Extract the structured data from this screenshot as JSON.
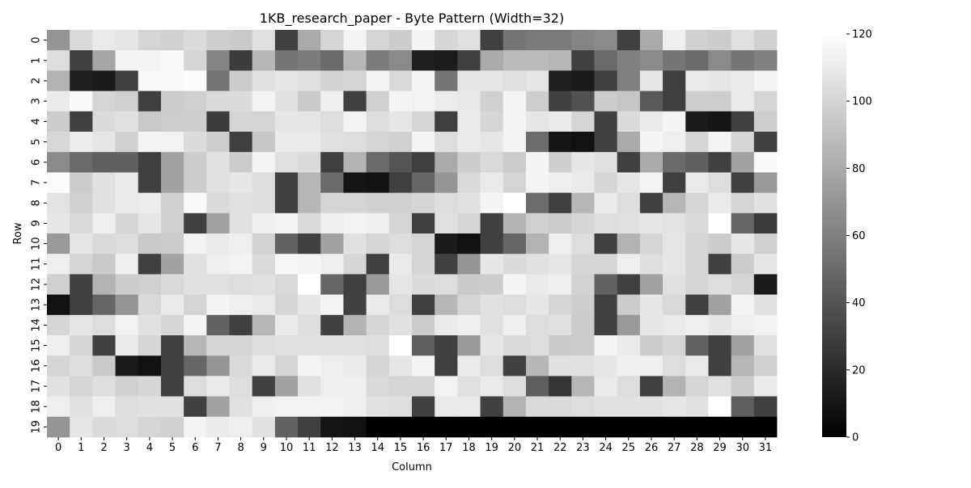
{
  "chart_data": {
    "type": "heatmap",
    "title": "1KB_research_paper - Byte Pattern (Width=32)",
    "xlabel": "Column",
    "ylabel": "Row",
    "x_ticks": [
      "0",
      "1",
      "2",
      "3",
      "4",
      "5",
      "6",
      "7",
      "8",
      "9",
      "10",
      "11",
      "12",
      "13",
      "14",
      "15",
      "16",
      "17",
      "18",
      "19",
      "20",
      "21",
      "22",
      "23",
      "24",
      "25",
      "26",
      "27",
      "28",
      "29",
      "30",
      "31"
    ],
    "y_ticks": [
      "0",
      "1",
      "2",
      "3",
      "4",
      "5",
      "6",
      "7",
      "8",
      "9",
      "10",
      "11",
      "12",
      "13",
      "14",
      "15",
      "16",
      "17",
      "18",
      "19"
    ],
    "colorbar": {
      "min": 0,
      "max": 120,
      "ticks": [
        "0",
        "20",
        "40",
        "60",
        "80",
        "100",
        "120"
      ],
      "colormap": "grayscale (black=0, white=120)"
    },
    "values": [
      [
        70,
        102,
        110,
        108,
        100,
        98,
        103,
        97,
        95,
        105,
        30,
        80,
        100,
        115,
        100,
        96,
        115,
        100,
        105,
        30,
        55,
        58,
        58,
        62,
        65,
        30,
        80,
        112,
        98,
        96,
        105,
        98
      ],
      [
        104,
        30,
        78,
        115,
        115,
        117,
        100,
        62,
        28,
        86,
        55,
        58,
        50,
        86,
        58,
        65,
        15,
        13,
        30,
        80,
        88,
        88,
        86,
        30,
        50,
        60,
        65,
        55,
        50,
        65,
        55,
        60
      ],
      [
        84,
        15,
        12,
        30,
        117,
        117,
        118,
        55,
        96,
        105,
        108,
        105,
        99,
        100,
        115,
        102,
        115,
        55,
        108,
        108,
        105,
        108,
        15,
        12,
        30,
        60,
        108,
        30,
        110,
        108,
        110,
        115
      ],
      [
        110,
        117,
        100,
        98,
        30,
        96,
        98,
        103,
        103,
        115,
        106,
        95,
        112,
        30,
        98,
        115,
        114,
        111,
        109,
        98,
        115,
        97,
        30,
        38,
        96,
        93,
        42,
        30,
        97,
        97,
        110,
        100
      ],
      [
        96,
        30,
        103,
        106,
        95,
        97,
        97,
        28,
        100,
        100,
        108,
        108,
        104,
        115,
        104,
        108,
        100,
        30,
        110,
        100,
        115,
        108,
        110,
        100,
        30,
        103,
        110,
        115,
        12,
        10,
        30,
        97
      ],
      [
        101,
        111,
        108,
        98,
        115,
        114,
        103,
        97,
        30,
        93,
        110,
        110,
        106,
        104,
        100,
        98,
        115,
        104,
        110,
        108,
        115,
        51,
        10,
        8,
        30,
        80,
        115,
        112,
        100,
        115,
        100,
        30
      ],
      [
        65,
        50,
        45,
        45,
        30,
        76,
        96,
        106,
        96,
        115,
        105,
        103,
        30,
        84,
        50,
        40,
        30,
        80,
        96,
        102,
        96,
        115,
        97,
        108,
        106,
        30,
        80,
        50,
        45,
        30,
        76,
        117
      ],
      [
        118,
        96,
        106,
        110,
        30,
        76,
        96,
        106,
        108,
        104,
        30,
        86,
        50,
        10,
        8,
        30,
        48,
        70,
        102,
        110,
        100,
        115,
        112,
        110,
        100,
        108,
        115,
        30,
        110,
        104,
        30,
        72
      ],
      [
        107,
        98,
        106,
        110,
        111,
        98,
        117,
        103,
        106,
        104,
        30,
        86,
        100,
        100,
        98,
        98,
        100,
        104,
        106,
        115,
        120,
        51,
        30,
        86,
        110,
        104,
        30,
        86,
        100,
        110,
        100,
        106
      ],
      [
        108,
        102,
        112,
        100,
        108,
        98,
        30,
        76,
        106,
        112,
        114,
        102,
        112,
        114,
        112,
        100,
        30,
        106,
        100,
        30,
        84,
        98,
        96,
        100,
        104,
        106,
        108,
        107,
        102,
        120,
        48,
        28
      ],
      [
        72,
        108,
        103,
        104,
        95,
        96,
        115,
        110,
        112,
        99,
        46,
        30,
        76,
        106,
        100,
        104,
        100,
        12,
        8,
        30,
        48,
        84,
        112,
        104,
        30,
        84,
        100,
        108,
        100,
        96,
        108,
        98
      ],
      [
        112,
        100,
        95,
        112,
        30,
        76,
        106,
        112,
        114,
        102,
        116,
        115,
        112,
        100,
        30,
        110,
        100,
        30,
        70,
        108,
        103,
        106,
        108,
        100,
        100,
        112,
        104,
        108,
        100,
        30,
        96,
        108
      ],
      [
        98,
        30,
        84,
        96,
        98,
        102,
        106,
        106,
        104,
        106,
        102,
        120,
        48,
        30,
        72,
        108,
        103,
        104,
        95,
        96,
        115,
        110,
        112,
        99,
        46,
        30,
        76,
        106,
        100,
        104,
        100,
        12
      ],
      [
        8,
        30,
        48,
        70,
        102,
        110,
        100,
        115,
        112,
        110,
        100,
        108,
        115,
        30,
        110,
        104,
        30,
        86,
        100,
        106,
        104,
        108,
        100,
        97,
        30,
        96,
        108,
        102,
        30,
        76,
        115,
        106
      ],
      [
        100,
        108,
        104,
        114,
        106,
        100,
        115,
        46,
        30,
        86,
        110,
        104,
        30,
        84,
        100,
        106,
        96,
        110,
        112,
        106,
        112,
        104,
        106,
        96,
        30,
        72,
        108,
        110,
        112,
        108,
        112,
        114
      ],
      [
        112,
        100,
        30,
        110,
        100,
        30,
        86,
        100,
        100,
        104,
        106,
        106,
        106,
        106,
        104,
        120,
        44,
        30,
        72,
        108,
        103,
        104,
        95,
        96,
        115,
        110,
        96,
        100,
        46,
        30,
        76,
        106
      ],
      [
        100,
        104,
        95,
        12,
        8,
        30,
        48,
        70,
        102,
        110,
        100,
        115,
        112,
        110,
        100,
        108,
        115,
        30,
        110,
        104,
        30,
        86,
        106,
        106,
        108,
        112,
        112,
        104,
        110,
        30,
        86,
        98
      ],
      [
        106,
        100,
        104,
        98,
        100,
        30,
        104,
        110,
        104,
        30,
        76,
        106,
        112,
        112,
        102,
        100,
        100,
        114,
        105,
        110,
        104,
        44,
        25,
        86,
        110,
        104,
        30,
        84,
        100,
        106,
        96,
        110
      ],
      [
        112,
        106,
        112,
        104,
        106,
        106,
        30,
        76,
        106,
        112,
        114,
        114,
        114,
        112,
        106,
        104,
        30,
        110,
        110,
        30,
        84,
        102,
        102,
        104,
        106,
        106,
        106,
        108,
        106,
        120,
        44,
        30
      ],
      [
        70,
        108,
        103,
        104,
        100,
        98,
        115,
        110,
        112,
        106,
        46,
        30,
        10,
        8,
        0,
        0,
        0,
        0,
        0,
        0,
        0,
        0,
        0,
        0,
        0,
        0,
        0,
        0,
        0,
        0,
        0,
        0
      ]
    ]
  }
}
